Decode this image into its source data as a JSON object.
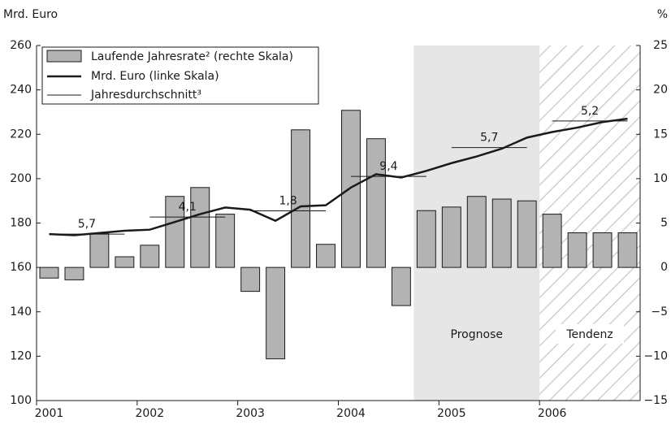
{
  "chart_data": {
    "type": "bar",
    "y_label": "Mrd. Euro",
    "y2_label": "%",
    "categories": [
      "2001",
      null,
      null,
      null,
      "2002",
      null,
      null,
      null,
      "2003",
      null,
      null,
      null,
      "2004",
      null,
      null,
      null,
      "2005",
      null,
      null,
      null,
      "2006",
      null,
      null,
      null
    ],
    "series": [
      {
        "name": "Laufende Jahresrate² (rechte Skala)",
        "type": "bar",
        "axis": "y2",
        "color": "#b3b3b3",
        "values": [
          -1.2,
          -1.4,
          3.8,
          1.2,
          2.5,
          8.0,
          9.0,
          6.0,
          -2.7,
          -10.3,
          15.5,
          2.6,
          17.7,
          14.5,
          -4.3,
          6.4,
          6.8,
          8.0,
          7.7,
          7.5,
          6.0,
          3.9,
          3.9,
          3.9
        ]
      },
      {
        "name": "Mrd. Euro (linke Skala)",
        "type": "line",
        "color": "#1a1a1a",
        "values": [
          175,
          174.5,
          175.5,
          176.5,
          177,
          180.5,
          184,
          187,
          186,
          181,
          187.5,
          188,
          196,
          202,
          200.5,
          203.5,
          207,
          210,
          213.5,
          218.5,
          221,
          223,
          225.5,
          227
        ]
      }
    ],
    "averages": {
      "name": "Jahresdurchschnitt³",
      "color": "#1a1a1a",
      "values": [
        175,
        182.7,
        185.5,
        201,
        214,
        226
      ],
      "value_labels": [
        "5,7",
        "4,1",
        "1,8",
        "9,4",
        "5,7",
        "5,2"
      ]
    },
    "regions": [
      "Prognose",
      "Tendenz"
    ],
    "ylim": [
      100,
      260
    ],
    "yticks": [
      100,
      120,
      140,
      160,
      180,
      200,
      220,
      240,
      260
    ],
    "y2lim": [
      -15,
      25
    ],
    "y2ticks": [
      {
        "value": -15,
        "label": "−15"
      },
      {
        "value": -10,
        "label": "−10"
      },
      {
        "value": -5,
        "label": "−5"
      },
      0,
      5,
      10,
      15,
      20,
      25
    ],
    "legend": "top-left"
  }
}
